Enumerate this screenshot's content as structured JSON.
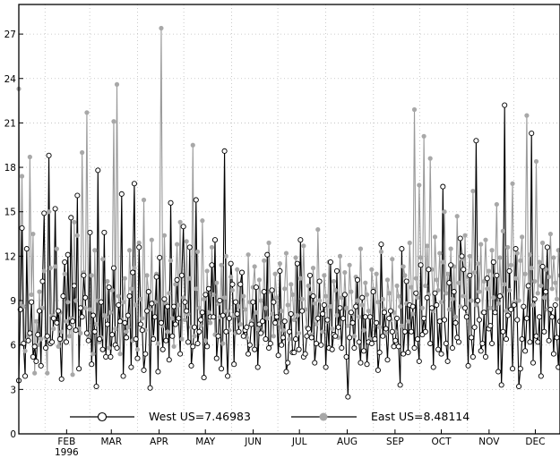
{
  "chart_data": {
    "type": "line",
    "title": "",
    "xlabel": "",
    "ylabel": "",
    "x_tick_labels": [
      "FEB",
      "MAR",
      "APR",
      "MAY",
      "JUN",
      "JUL",
      "AUG",
      "SEP",
      "OCT",
      "NOV",
      "DEC"
    ],
    "x_year_label": "1996",
    "x_start_date": "1996-01-15",
    "x_end_date": "1996-12-31",
    "ylim": [
      0,
      29
    ],
    "y_ticks": [
      0,
      3,
      6,
      9,
      12,
      15,
      18,
      21,
      24,
      27
    ],
    "grid": true,
    "legend_position": "bottom",
    "series": [
      {
        "name": "West US",
        "legend_label": "West US=7.46983",
        "mean": 7.46983,
        "marker": "open-circle",
        "color": "#000000",
        "values": [
          3.6,
          8.4,
          13.9,
          6.1,
          3.9,
          12.5,
          6.3,
          6.8,
          8.9,
          5.2,
          5.9,
          4.9,
          6.7,
          8.3,
          4.6,
          10.3,
          14.9,
          5.8,
          6.6,
          18.8,
          6.1,
          6.2,
          7.8,
          15.2,
          7.5,
          8.3,
          6.4,
          3.7,
          9.3,
          11.6,
          6.2,
          12.1,
          7.2,
          14.6,
          7.6,
          10.0,
          7.0,
          16.1,
          4.4,
          8.5,
          7.9,
          10.7,
          9.2,
          6.8,
          6.3,
          13.6,
          4.7,
          8.0,
          6.9,
          3.2,
          17.8,
          6.4,
          8.9,
          5.7,
          13.6,
          5.2,
          7.4,
          9.9,
          5.2,
          6.7,
          11.2,
          6.0,
          5.8,
          8.7,
          7.6,
          16.2,
          3.9,
          7.5,
          6.5,
          8.0,
          9.3,
          4.5,
          10.9,
          16.9,
          6.4,
          5.1,
          12.6,
          7.4,
          7.0,
          4.3,
          5.4,
          8.3,
          9.6,
          3.1,
          8.8,
          6.4,
          7.9,
          10.6,
          4.2,
          11.9,
          7.5,
          5.7,
          9.1,
          6.3,
          8.6,
          5.0,
          15.6,
          6.6,
          8.6,
          7.4,
          10.4,
          7.8,
          5.4,
          10.7,
          14.0,
          8.9,
          8.3,
          6.2,
          12.6,
          4.6,
          5.9,
          7.2,
          15.8,
          6.1,
          6.9,
          7.7,
          8.2,
          3.8,
          9.4,
          5.9,
          9.8,
          7.9,
          11.4,
          7.9,
          13.1,
          5.1,
          6.6,
          9.0,
          4.4,
          8.0,
          19.1,
          6.9,
          3.9,
          7.8,
          11.5,
          10.1,
          4.7,
          8.9,
          8.1,
          6.9,
          10.1,
          10.9,
          6.6,
          7.0,
          7.2,
          5.4,
          6.0,
          7.4,
          8.9,
          5.7,
          9.9,
          4.5,
          7.4,
          6.8,
          7.6,
          9.6,
          6.4,
          12.1,
          5.8,
          6.1,
          9.7,
          8.9,
          7.5,
          7.9,
          5.3,
          11.0,
          6.0,
          6.5,
          7.6,
          4.2,
          4.8,
          6.9,
          8.1,
          5.5,
          5.5,
          6.4,
          11.5,
          5.7,
          13.1,
          8.3,
          5.2,
          5.4,
          6.6,
          7.1,
          10.7,
          6.5,
          9.3,
          4.8,
          6.1,
          7.8,
          10.3,
          6.0,
          8.1,
          8.7,
          4.5,
          7.7,
          5.8,
          11.6,
          5.7,
          6.7,
          6.6,
          11.0,
          7.2,
          8.5,
          5.8,
          7.8,
          9.4,
          5.2,
          2.5,
          6.5,
          8.2,
          7.5,
          5.8,
          8.6,
          10.4,
          6.2,
          4.8,
          9.2,
          5.6,
          7.9,
          4.7,
          6.2,
          7.9,
          6.1,
          9.6,
          6.4,
          7.5,
          4.3,
          5.5,
          12.8,
          6.6,
          8.2,
          7.1,
          5.0,
          7.8,
          8.3,
          6.9,
          5.9,
          6.3,
          7.8,
          5.9,
          3.3,
          12.5,
          5.4,
          6.9,
          10.3,
          5.5,
          8.7,
          6.9,
          8.6,
          5.8,
          9.5,
          6.4,
          4.9,
          11.4,
          6.7,
          7.8,
          6.9,
          9.2,
          11.1,
          6.1,
          8.5,
          4.5,
          9.5,
          8.7,
          5.7,
          7.6,
          5.4,
          16.7,
          7.7,
          6.1,
          4.9,
          10.2,
          11.4,
          5.8,
          9.6,
          7.5,
          6.5,
          6.2,
          13.2,
          12.0,
          11.1,
          8.5,
          7.9,
          4.6,
          10.7,
          6.5,
          5.2,
          7.2,
          19.8,
          9.0,
          7.7,
          5.6,
          6.1,
          8.2,
          5.2,
          10.5,
          7.1,
          7.3,
          6.1,
          11.6,
          8.2,
          10.7,
          4.2,
          9.3,
          3.3,
          6.9,
          22.2,
          6.4,
          8.0,
          11.0,
          8.4,
          4.4,
          8.7,
          12.5,
          7.7,
          3.2,
          4.4,
          6.4,
          8.6,
          5.6,
          7.8,
          10.0,
          6.2,
          20.3,
          4.8,
          9.1,
          6.6,
          6.2,
          7.9,
          3.9,
          11.3,
          6.9,
          9.6,
          12.6,
          6.3,
          8.4,
          7.9,
          5.4,
          8.7,
          6.5,
          4.5,
          7.6
        ]
      },
      {
        "name": "East US",
        "legend_label": "East US=8.48114",
        "mean": 8.48114,
        "marker": "filled-dot",
        "color": "#a8a8a8",
        "values": [
          23.3,
          8.8,
          17.4,
          8.6,
          5.6,
          6.3,
          6.6,
          18.7,
          9.4,
          13.5,
          4.1,
          7.6,
          6.0,
          9.6,
          6.4,
          8.5,
          11.0,
          6.5,
          4.1,
          15.0,
          11.2,
          8.0,
          7.1,
          11.3,
          12.5,
          5.9,
          8.2,
          6.9,
          6.3,
          10.8,
          7.6,
          8.9,
          6.6,
          7.8,
          4.0,
          14.3,
          9.0,
          13.4,
          7.1,
          6.8,
          19.0,
          10.9,
          8.5,
          21.7,
          6.6,
          8.4,
          10.7,
          5.4,
          12.4,
          7.4,
          9.0,
          6.2,
          6.5,
          11.8,
          8.0,
          7.9,
          10.3,
          5.8,
          8.2,
          9.7,
          21.1,
          7.1,
          23.6,
          9.3,
          5.4,
          7.7,
          8.9,
          10.5,
          6.9,
          7.2,
          12.4,
          9.8,
          6.3,
          11.2,
          8.7,
          5.7,
          12.9,
          9.1,
          7.8,
          15.8,
          7.0,
          10.7,
          9.6,
          8.4,
          13.1,
          6.5,
          8.9,
          10.8,
          6.1,
          11.9,
          27.4,
          7.3,
          13.4,
          8.8,
          6.9,
          9.5,
          11.7,
          7.8,
          5.9,
          10.1,
          12.8,
          8.7,
          14.3,
          6.4,
          9.2,
          7.7,
          13.0,
          8.1,
          10.5,
          7.2,
          19.5,
          6.6,
          9.8,
          12.3,
          8.5,
          7.3,
          14.4,
          9.1,
          6.3,
          11.0,
          8.2,
          7.5,
          12.6,
          9.4,
          6.7,
          10.2,
          8.8,
          7.9,
          11.4,
          6.1,
          9.2,
          12.0,
          8.3,
          7.0,
          10.6,
          9.7,
          8.0,
          6.8,
          11.1,
          8.6,
          7.4,
          10.9,
          9.3,
          8.4,
          6.5,
          12.1,
          8.9,
          7.6,
          9.9,
          11.3,
          8.2,
          7.1,
          10.4,
          9.0,
          6.9,
          11.7,
          8.5,
          7.8,
          12.9,
          9.6,
          8.1,
          6.6,
          10.8,
          9.2,
          7.5,
          11.5,
          8.3,
          7.0,
          9.8,
          12.2,
          8.7,
          6.4,
          10.1,
          9.4,
          7.7,
          11.9,
          8.0,
          6.8,
          10.5,
          9.1,
          12.7,
          8.4,
          7.2,
          10.0,
          9.5,
          6.7,
          11.2,
          8.8,
          7.4,
          13.8,
          9.0,
          8.2,
          6.9,
          10.7,
          9.3,
          7.6,
          11.6,
          8.6,
          7.1,
          10.3,
          9.7,
          8.0,
          6.5,
          12.0,
          9.2,
          7.8,
          10.9,
          8.5,
          7.3,
          11.4,
          9.6,
          8.1,
          6.6,
          10.6,
          9.0,
          7.9,
          12.5,
          8.7,
          7.0,
          10.2,
          9.4,
          8.3,
          6.4,
          11.1,
          9.8,
          7.5,
          10.8,
          8.9,
          7.2,
          12.3,
          9.1,
          8.4,
          6.8,
          10.4,
          9.5,
          7.7,
          11.8,
          8.2,
          6.9,
          10.0,
          9.3,
          8.6,
          7.3,
          11.3,
          10.7,
          8.8,
          7.6,
          12.9,
          9.9,
          8.1,
          21.9,
          10.5,
          9.2,
          16.8,
          11.9,
          8.5,
          20.1,
          10.0,
          12.7,
          9.4,
          18.6,
          11.1,
          8.3,
          13.3,
          10.4,
          9.7,
          12.2,
          8.9,
          11.6,
          15.0,
          9.5,
          10.8,
          8.4,
          12.5,
          9.1,
          11.3,
          7.9,
          14.7,
          10.2,
          8.6,
          11.8,
          9.3,
          13.4,
          8.0,
          10.6,
          12.0,
          9.0,
          16.4,
          10.9,
          8.7,
          11.5,
          9.6,
          12.8,
          8.2,
          10.3,
          13.1,
          9.8,
          11.0,
          8.5,
          12.4,
          9.2,
          10.7,
          15.5,
          8.8,
          11.9,
          9.4,
          13.7,
          10.1,
          8.3,
          12.6,
          9.7,
          11.4,
          16.9,
          8.9,
          10.5,
          12.2,
          9.0,
          11.7,
          13.3,
          8.6,
          10.8,
          21.5,
          9.9,
          12.1,
          11.2,
          8.7,
          10.3,
          18.4,
          9.5,
          11.6,
          10.0,
          12.9,
          9.2,
          11.1,
          8.4,
          10.6,
          13.5,
          9.8,
          11.9,
          10.2,
          9.1,
          12.4,
          10.7
        ]
      }
    ]
  }
}
